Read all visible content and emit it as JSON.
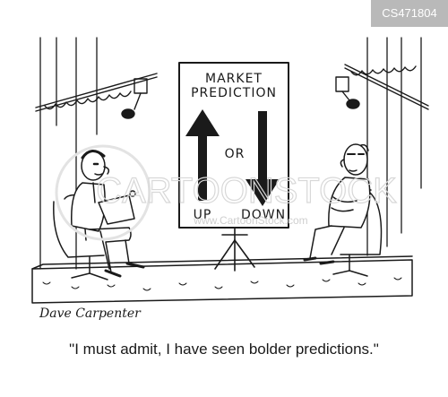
{
  "watermark": {
    "id_badge": "CS471804",
    "site": "CARTOONSTOCK",
    "domain": "www.CartoonStock.com"
  },
  "sign": {
    "title_line1": "MARKET",
    "title_line2": "PREDICTION",
    "up_label": "UP",
    "or_label": "OR",
    "down_label": "DOWN"
  },
  "signature": "Dave Carpenter",
  "caption": "\"I must admit, I have seen bolder predictions.\""
}
